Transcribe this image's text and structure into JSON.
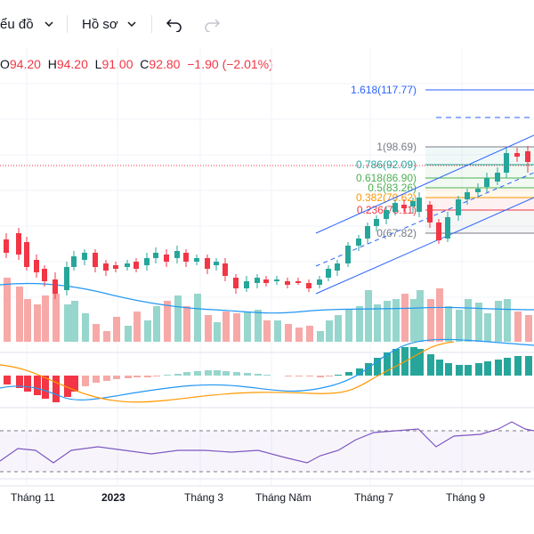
{
  "toolbar": {
    "chart_menu": "ểu đồ",
    "profile_menu": "Hồ sơ",
    "icons": [
      "chevron-down-icon",
      "undo-icon",
      "redo-icon"
    ]
  },
  "ohlc": {
    "open_label": "O",
    "open": "94.20",
    "high_label": "H",
    "high": "94.20",
    "low_label": "L",
    "low": "91.00",
    "close_label": "C",
    "close": "92.80",
    "change": "−1.90 (−2.01%)"
  },
  "fibonacci": [
    {
      "label": "1.618(117.77)",
      "color": "#2962ff"
    },
    {
      "label": "1(98.69)",
      "color": "#787b86"
    },
    {
      "label": "0.786(92.09)",
      "color": "#26a69a"
    },
    {
      "label": "0.618(86.90)",
      "color": "#4caf50"
    },
    {
      "label": "0.5(83.26)",
      "color": "#4caf50"
    },
    {
      "label": "0.382(79.62)",
      "color": "#ff9800"
    },
    {
      "label": "0.236(75.11)",
      "color": "#f23645"
    },
    {
      "label": "0(67.82)",
      "color": "#787b86"
    }
  ],
  "time_axis": [
    "Tháng 11",
    "2023",
    "Tháng 3",
    "Tháng Năm",
    "Tháng 7",
    "Tháng 9"
  ],
  "colors": {
    "up": "#26a69a",
    "down": "#f23645",
    "volume_up": "#97d6cc",
    "volume_down": "#f7a9a7",
    "ma": "#2196f3",
    "rsi": "#7e57c2",
    "macd_signal": "#ff9800"
  }
}
